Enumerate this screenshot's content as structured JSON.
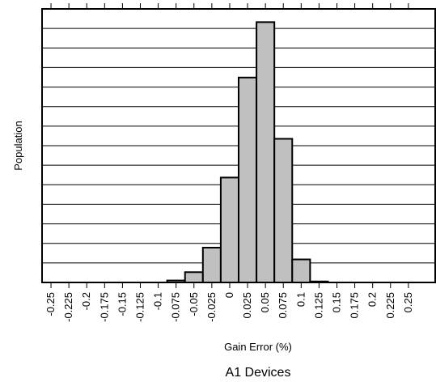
{
  "chart_data": {
    "type": "bar",
    "title": "A1 Devices",
    "xlabel": "Gain Error (%)",
    "ylabel": "Population",
    "bin_width": 0.025,
    "categories": [
      "-0.25",
      "-0.225",
      "-0.2",
      "-0.175",
      "-0.15",
      "-0.125",
      "-0.1",
      "-0.075",
      "-0.05",
      "-0.025",
      "0",
      "0.025",
      "0.05",
      "0.075",
      "0.1",
      "0.125",
      "0.15",
      "0.175",
      "0.2",
      "0.225",
      "0.25"
    ],
    "bins": [
      {
        "x": -0.075,
        "value": 0.2
      },
      {
        "x": -0.05,
        "value": 1.05
      },
      {
        "x": -0.025,
        "value": 3.55
      },
      {
        "x": 0,
        "value": 10.7
      },
      {
        "x": 0.025,
        "value": 20.9
      },
      {
        "x": 0.05,
        "value": 26.55
      },
      {
        "x": 0.075,
        "value": 14.65
      },
      {
        "x": 0.1,
        "value": 2.35
      },
      {
        "x": 0.125,
        "value": 0.1
      }
    ],
    "xlim": [
      -0.2625,
      0.2875
    ],
    "ylim": [
      0,
      27.9
    ],
    "y_gridlines": 14,
    "grid": true,
    "bar_color": "#c0c0c0",
    "edge_color": "#000000"
  }
}
